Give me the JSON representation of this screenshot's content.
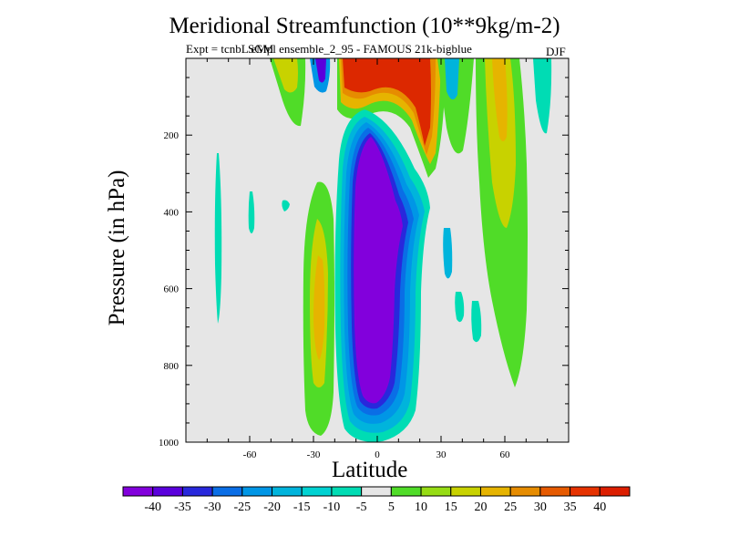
{
  "chart_data": {
    "type": "contour",
    "title": "Meridional Streamfunction (10**9kg/m-2)",
    "subtitle": "Expt = tcnbL eMpl ensemble_2_95 - FAMOUS 21k-bigblue",
    "subtitle_overprint": "SGM",
    "season": "DJF",
    "xlabel": "Latitude",
    "ylabel": "Pressure (in hPa)",
    "xlim": [
      -90,
      90
    ],
    "ylim": [
      0,
      1000
    ],
    "y_inverted": true,
    "x_ticks": [
      -60,
      -30,
      0,
      30,
      60
    ],
    "x_tick_labels": [
      "-60",
      "-30",
      "0",
      "30",
      "60"
    ],
    "y_ticks": [
      200,
      400,
      600,
      800,
      1000
    ],
    "y_tick_labels": [
      "200",
      "400",
      "600",
      "800",
      "1000"
    ],
    "background_color": "#e6e6e6",
    "contour_levels": [
      -40,
      -35,
      -30,
      -25,
      -20,
      -15,
      -10,
      -5,
      5,
      10,
      15,
      20,
      25,
      30,
      35,
      40
    ],
    "colorbar_labels": [
      "-40",
      "-35",
      "-30",
      "-25",
      "-20",
      "-15",
      "-10",
      "-5",
      "5",
      "10",
      "15",
      "20",
      "25",
      "30",
      "35",
      "40"
    ],
    "colorbar_colors": [
      "#8200dc",
      "#5a00dc",
      "#2828dc",
      "#0a6ee6",
      "#0096e6",
      "#00b4dc",
      "#00d2d2",
      "#00dcb4",
      "#e6e6e6",
      "#50dc28",
      "#96dc14",
      "#c8d200",
      "#e6b400",
      "#e68c00",
      "#e65a00",
      "#e63200",
      "#dc1e00"
    ],
    "features": [
      {
        "name": "southern-hemisphere-hadley-cell",
        "min_value": -40,
        "center_lat": 0,
        "center_p": 560,
        "lat_range": [
          -12,
          20
        ],
        "p_range": [
          150,
          990
        ]
      },
      {
        "name": "stratospheric-positive-cell",
        "max_value": 40,
        "center_lat": 5,
        "center_p": 60,
        "lat_range": [
          -15,
          25
        ],
        "p_range": [
          0,
          200
        ]
      },
      {
        "name": "ferrel-cell-south",
        "max_value": 25,
        "center_lat": -28,
        "center_p": 680,
        "lat_range": [
          -38,
          -18
        ],
        "p_range": [
          280,
          980
        ]
      },
      {
        "name": "ferrel-cell-north",
        "max_value": 20,
        "center_lat": 58,
        "center_p": 450,
        "lat_range": [
          45,
          70
        ],
        "p_range": [
          0,
          880
        ]
      },
      {
        "name": "polar-cell-north",
        "min_value": -10,
        "center_lat": 78,
        "center_p": 50,
        "lat_range": [
          73,
          83
        ],
        "p_range": [
          0,
          180
        ]
      }
    ]
  }
}
